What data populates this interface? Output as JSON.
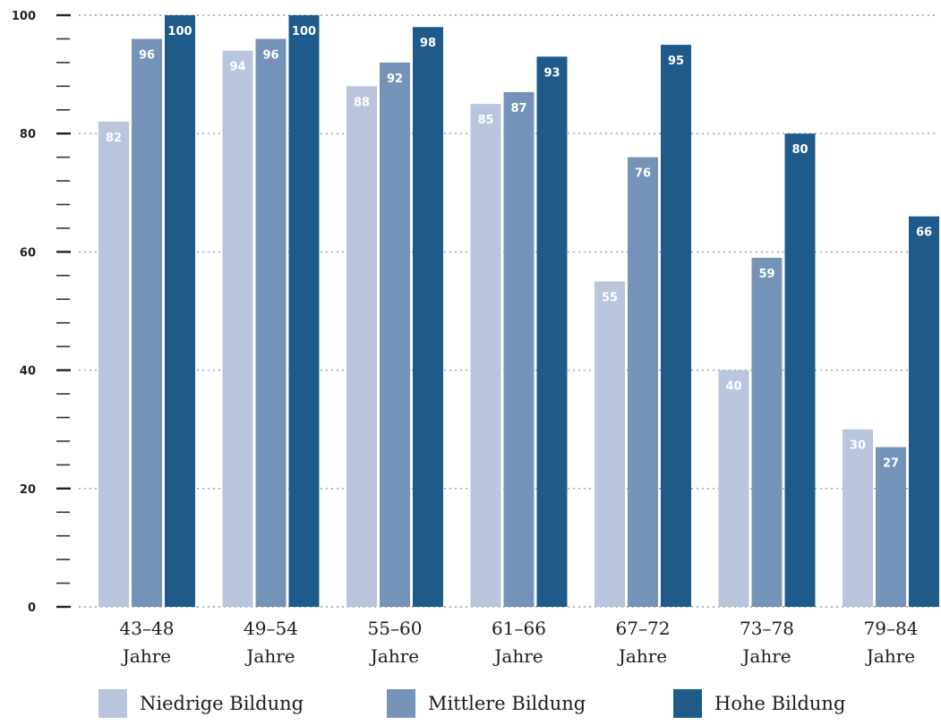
{
  "chart_data": {
    "type": "bar",
    "categories": [
      [
        "43–48",
        "Jahre"
      ],
      [
        "49–54",
        "Jahre"
      ],
      [
        "55–60",
        "Jahre"
      ],
      [
        "61–66",
        "Jahre"
      ],
      [
        "67–72",
        "Jahre"
      ],
      [
        "73–78",
        "Jahre"
      ],
      [
        "79–84",
        "Jahre"
      ]
    ],
    "series": [
      {
        "name": "Niedrige Bildung",
        "color": "#b8c5dd",
        "values": [
          82,
          94,
          88,
          85,
          55,
          40,
          30
        ]
      },
      {
        "name": "Mittlere Bildung",
        "color": "#7593b9",
        "values": [
          96,
          96,
          92,
          87,
          76,
          59,
          27
        ]
      },
      {
        "name": "Hohe Bildung",
        "color": "#1f5b8a",
        "values": [
          100,
          100,
          98,
          93,
          95,
          80,
          66
        ]
      }
    ],
    "ylim": [
      0,
      100
    ],
    "yticks": [
      "0",
      "20",
      "40",
      "60",
      "80",
      "100"
    ],
    "ytick_values": [
      0,
      20,
      40,
      60,
      80,
      100
    ],
    "minor_tick_step": 4,
    "grid": true,
    "grid_style": "dotted",
    "data_labels": true,
    "legend_position": "bottom",
    "title": "",
    "xlabel": "",
    "ylabel": ""
  }
}
